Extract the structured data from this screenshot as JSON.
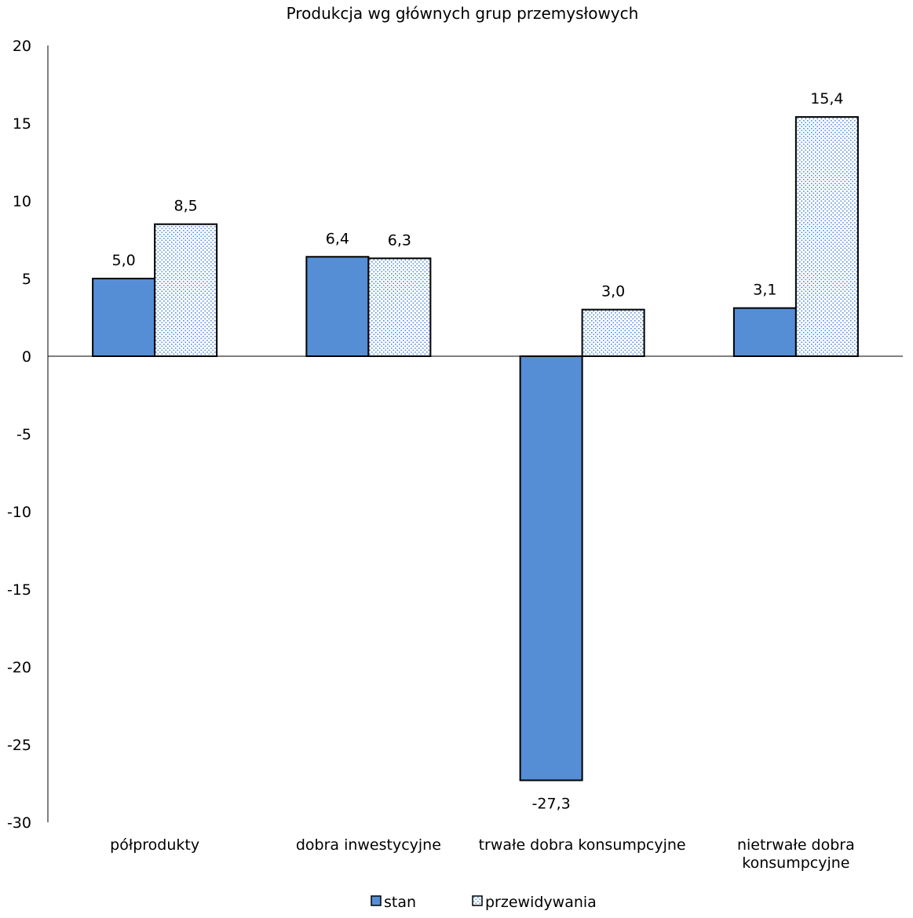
{
  "chart_data": {
    "type": "bar",
    "title": "Produkcja wg głównych grup przemysłowych",
    "xlabel": "",
    "ylabel": "",
    "ylim": [
      -30,
      20
    ],
    "yticks": [
      20,
      15,
      10,
      5,
      0,
      -5,
      -10,
      -15,
      -20,
      -25,
      -30
    ],
    "categories": [
      [
        "półprodukty"
      ],
      [
        "dobra inwestycyjne"
      ],
      [
        "trwałe dobra konsumpcyjne"
      ],
      [
        "nietrwałe dobra",
        "konsumpcyjne"
      ]
    ],
    "series": [
      {
        "name": "stan",
        "values": [
          5.0,
          6.4,
          -27.3,
          3.1
        ],
        "labels": [
          "5,0",
          "6,4",
          "-27,3",
          "3,1"
        ],
        "color": "#558ED5",
        "pattern": "solid"
      },
      {
        "name": "przewidywania",
        "values": [
          8.5,
          6.3,
          3.0,
          15.4
        ],
        "labels": [
          "8,5",
          "6,3",
          "3,0",
          "15,4"
        ],
        "color": "#558ED5",
        "pattern": "dotted"
      }
    ],
    "legend": "bottom",
    "grid": false
  }
}
